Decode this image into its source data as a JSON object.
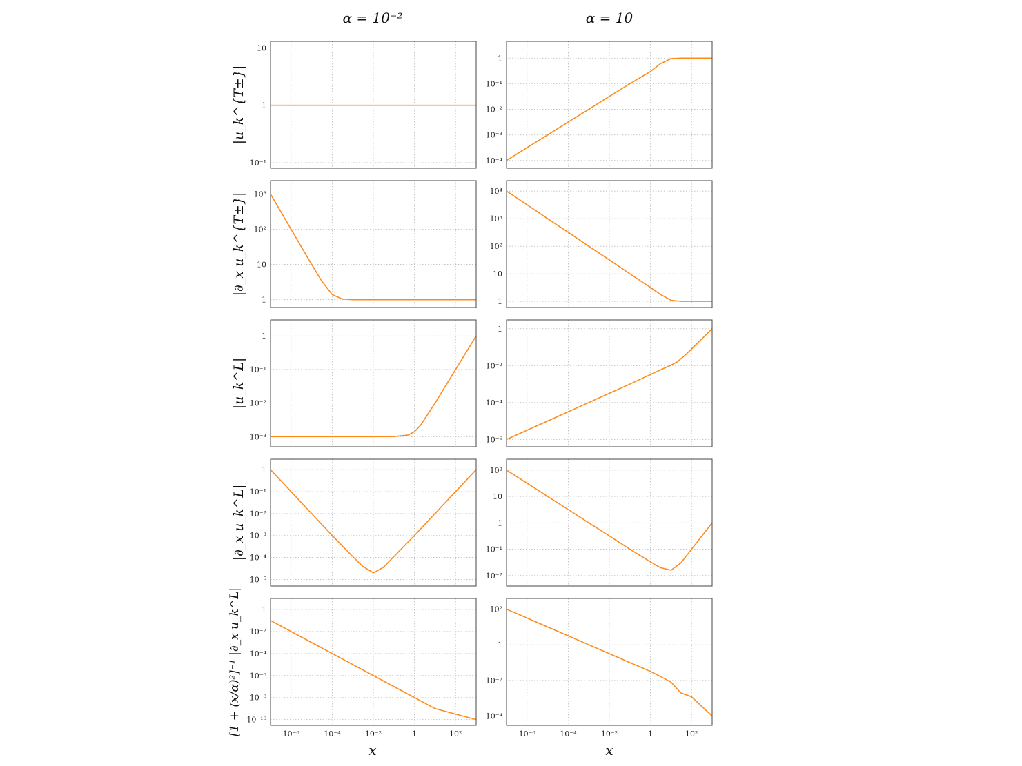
{
  "figure": {
    "column_titles": [
      "α = 10⁻²",
      "α = 10"
    ],
    "row_labels": [
      "|u_k^{T±}|",
      "|∂_x u_k^{T±}|",
      "|u_k^L|",
      "|∂_x u_k^L|",
      "[1 + (x/α)²]⁻¹ |∂_x u_k^L|"
    ],
    "xlabel": "x",
    "line_color": "#ff8a1a"
  },
  "chart_data": [
    {
      "type": "line",
      "title": "α = 10⁻²",
      "ylabel": "|u_k^{T±}|",
      "xscale": "log",
      "yscale": "log",
      "xlim": [
        1e-07,
        1000
      ],
      "ylim": [
        0.08,
        13
      ],
      "yticks": [
        0.1,
        1,
        10
      ],
      "yticklabels": [
        "10⁻¹",
        "1",
        "10"
      ],
      "grid": true,
      "series": [
        {
          "x": [
            1e-07,
            1e-05,
            0.001,
            0.1,
            10,
            1000
          ],
          "y": [
            1,
            1,
            1,
            1,
            1,
            1
          ]
        }
      ]
    },
    {
      "type": "line",
      "title": "α = 10",
      "ylabel": "",
      "xscale": "log",
      "yscale": "log",
      "xlim": [
        1e-07,
        1000
      ],
      "ylim": [
        5e-05,
        4.5
      ],
      "yticks": [
        0.0001,
        0.001,
        0.01,
        0.1,
        1
      ],
      "yticklabels": [
        "10⁻⁴",
        "10⁻³",
        "10⁻²",
        "10⁻¹",
        "1"
      ],
      "grid": true,
      "series": [
        {
          "x": [
            1e-07,
            1e-06,
            1e-05,
            0.0001,
            0.001,
            0.01,
            0.1,
            1,
            3,
            10,
            30,
            100,
            1000
          ],
          "y": [
            0.0001,
            0.00032,
            0.001,
            0.0032,
            0.01,
            0.032,
            0.1,
            0.3,
            0.6,
            0.95,
            1,
            1,
            1
          ]
        }
      ]
    },
    {
      "type": "line",
      "title": "",
      "ylabel": "|∂_x u_k^{T±}|",
      "xscale": "log",
      "yscale": "log",
      "xlim": [
        1e-07,
        1000
      ],
      "ylim": [
        0.6,
        2400
      ],
      "yticks": [
        1,
        10,
        100,
        1000
      ],
      "yticklabels": [
        "1",
        "10",
        "10²",
        "10³"
      ],
      "grid": true,
      "series": [
        {
          "x": [
            1e-07,
            1e-06,
            1e-05,
            3e-05,
            0.0001,
            0.0003,
            0.001,
            0.01,
            1,
            1000
          ],
          "y": [
            1000,
            100,
            10,
            3.5,
            1.4,
            1.05,
            1,
            1,
            1,
            1
          ]
        }
      ]
    },
    {
      "type": "line",
      "title": "",
      "ylabel": "",
      "xscale": "log",
      "yscale": "log",
      "xlim": [
        1e-07,
        1000
      ],
      "ylim": [
        0.6,
        24000
      ],
      "yticks": [
        1,
        10,
        100,
        1000,
        10000
      ],
      "yticklabels": [
        "1",
        "10",
        "10²",
        "10³",
        "10⁴"
      ],
      "grid": true,
      "series": [
        {
          "x": [
            1e-07,
            1e-06,
            1e-05,
            0.0001,
            0.001,
            0.01,
            0.1,
            1,
            3,
            10,
            30,
            100,
            1000
          ],
          "y": [
            10000,
            3200,
            1000,
            320,
            100,
            32,
            10,
            3.2,
            1.8,
            1.1,
            1,
            1,
            1
          ]
        }
      ]
    },
    {
      "type": "line",
      "title": "",
      "ylabel": "|u_k^L|",
      "xscale": "log",
      "yscale": "log",
      "xlim": [
        1e-07,
        1000
      ],
      "ylim": [
        0.0005,
        3
      ],
      "yticks": [
        0.001,
        0.01,
        0.1,
        1
      ],
      "yticklabels": [
        "10⁻³",
        "10⁻²",
        "10⁻¹",
        "1"
      ],
      "grid": true,
      "series": [
        {
          "x": [
            1e-07,
            0.0001,
            0.01,
            0.1,
            0.5,
            1,
            2,
            10,
            100,
            1000
          ],
          "y": [
            0.001,
            0.001,
            0.001,
            0.001005,
            0.00112,
            0.00141,
            0.0022,
            0.01,
            0.1,
            1
          ]
        }
      ]
    },
    {
      "type": "line",
      "title": "",
      "ylabel": "",
      "xscale": "log",
      "yscale": "log",
      "xlim": [
        1e-07,
        1000
      ],
      "ylim": [
        4e-07,
        3
      ],
      "yticks": [
        1e-06,
        0.0001,
        0.01,
        1
      ],
      "yticklabels": [
        "10⁻⁶",
        "10⁻⁴",
        "10⁻²",
        "1"
      ],
      "grid": true,
      "series": [
        {
          "x": [
            1e-07,
            1e-05,
            0.001,
            0.1,
            1,
            5,
            10,
            20,
            50,
            100,
            1000
          ],
          "y": [
            1e-06,
            1e-05,
            0.0001,
            0.001,
            0.0033,
            0.0075,
            0.0105,
            0.016,
            0.038,
            0.08,
            1
          ]
        }
      ]
    },
    {
      "type": "line",
      "title": "",
      "ylabel": "|∂_x u_k^L|",
      "xscale": "log",
      "yscale": "log",
      "xlim": [
        1e-07,
        1000
      ],
      "ylim": [
        5e-06,
        3
      ],
      "yticks": [
        1e-05,
        0.0001,
        0.001,
        0.01,
        0.1,
        1
      ],
      "yticklabels": [
        "10⁻⁵",
        "10⁻⁴",
        "10⁻³",
        "10⁻²",
        "10⁻¹",
        "1"
      ],
      "grid": true,
      "series": [
        {
          "x": [
            1e-07,
            1e-06,
            1e-05,
            0.0001,
            0.001,
            0.003,
            0.01,
            0.03,
            0.1,
            1,
            10,
            100,
            1000
          ],
          "y": [
            1,
            0.1,
            0.01,
            0.001,
            0.00011,
            4e-05,
            2e-05,
            3.5e-05,
            0.00011,
            0.001,
            0.01,
            0.1,
            1
          ]
        }
      ]
    },
    {
      "type": "line",
      "title": "",
      "ylabel": "",
      "xscale": "log",
      "yscale": "log",
      "xlim": [
        1e-07,
        1000
      ],
      "ylim": [
        0.004,
        260
      ],
      "yticks": [
        0.01,
        0.1,
        1,
        10,
        100
      ],
      "yticklabels": [
        "10⁻²",
        "10⁻¹",
        "1",
        "10",
        "10²"
      ],
      "grid": true,
      "series": [
        {
          "x": [
            1e-07,
            1e-06,
            1e-05,
            0.0001,
            0.001,
            0.01,
            0.1,
            1,
            3,
            10,
            30,
            100,
            1000
          ],
          "y": [
            100,
            32,
            10,
            3.2,
            1,
            0.32,
            0.1,
            0.033,
            0.02,
            0.016,
            0.03,
            0.1,
            1
          ]
        }
      ]
    },
    {
      "type": "line",
      "title": "",
      "ylabel": "[1 + (x/α)²]⁻¹ |∂_x u_k^L|",
      "xscale": "log",
      "yscale": "log",
      "xlim": [
        1e-07,
        1000
      ],
      "ylim": [
        3e-11,
        10
      ],
      "yticks": [
        1e-10,
        1e-08,
        1e-06,
        0.0001,
        0.01,
        1
      ],
      "yticklabels": [
        "10⁻¹⁰",
        "10⁻⁸",
        "10⁻⁶",
        "10⁻⁴",
        "10⁻²",
        "1"
      ],
      "grid": true,
      "xticks": [
        1e-06,
        0.0001,
        0.01,
        1,
        100
      ],
      "xticklabels": [
        "10⁻⁶",
        "10⁻⁴",
        "10⁻²",
        "1",
        "10²"
      ],
      "xlabel": "x",
      "series": [
        {
          "x": [
            1e-07,
            1e-05,
            0.001,
            0.1,
            10,
            1000
          ],
          "y": [
            0.1,
            0.001,
            1e-05,
            1e-07,
            1e-09,
            1e-10
          ]
        }
      ]
    },
    {
      "type": "line",
      "title": "",
      "ylabel": "",
      "xscale": "log",
      "yscale": "log",
      "xlim": [
        1e-07,
        1000
      ],
      "ylim": [
        3e-05,
        400
      ],
      "yticks": [
        0.0001,
        0.01,
        1,
        100
      ],
      "yticklabels": [
        "10⁻⁴",
        "10⁻²",
        "1",
        "10²"
      ],
      "grid": true,
      "xticks": [
        1e-06,
        0.0001,
        0.01,
        1,
        100
      ],
      "xticklabels": [
        "10⁻⁶",
        "10⁻⁴",
        "10⁻²",
        "1",
        "10²"
      ],
      "xlabel": "x",
      "series": [
        {
          "x": [
            1e-07,
            1e-06,
            1e-05,
            0.0001,
            0.001,
            0.01,
            0.1,
            1,
            3,
            10,
            30,
            100,
            1000
          ],
          "y": [
            100,
            32,
            10,
            3.2,
            1,
            0.32,
            0.1,
            0.032,
            0.017,
            0.008,
            0.002,
            0.0012,
            0.0001
          ]
        }
      ]
    }
  ]
}
